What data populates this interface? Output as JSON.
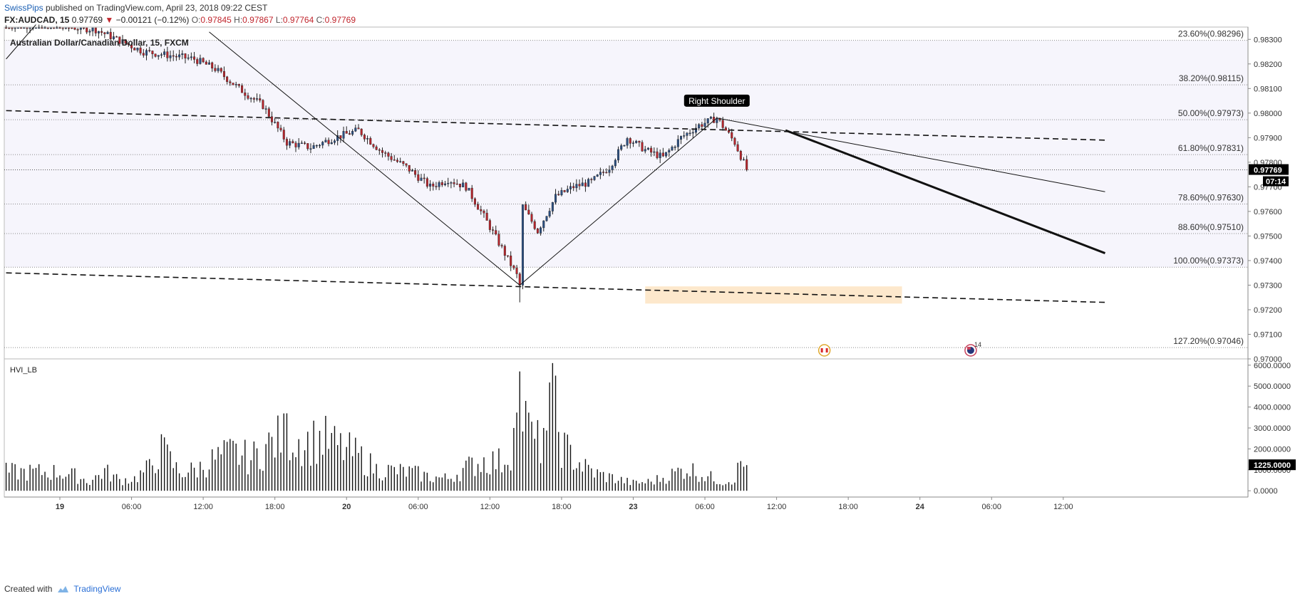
{
  "header": {
    "author": "SwissPips",
    "published": "published on TradingView.com, April 23, 2018 09:22 CEST",
    "symbol": "FX:AUDCAD, 15",
    "price": "0.97769",
    "change": "−0.00121 (−0.12%)",
    "open_label": "O:",
    "open": "0.97845",
    "high_label": "H:",
    "high": "0.97867",
    "low_label": "L:",
    "low": "0.97764",
    "close_label": "C:",
    "close": "0.97769",
    "instrument": "Australian Dollar/Canadian Dollar, 15, FXCM"
  },
  "footer": {
    "created_with": "Created with",
    "brand": "TradingView"
  },
  "chart_data": [
    {
      "type": "candlestick",
      "ylim": [
        0.97,
        0.9835
      ],
      "price_ticks": [
        "0.98300",
        "0.98200",
        "0.98100",
        "0.98000",
        "0.97900",
        "0.97800",
        "0.97700",
        "0.97600",
        "0.97500",
        "0.97400",
        "0.97300",
        "0.97200",
        "0.97100",
        "0.97000"
      ],
      "time_ticks": [
        {
          "label": "19",
          "bar": 0
        },
        {
          "label": "06:00",
          "bar": 24
        },
        {
          "label": "12:00",
          "bar": 48
        },
        {
          "label": "18:00",
          "bar": 72
        },
        {
          "label": "20",
          "bar": 96
        },
        {
          "label": "06:00",
          "bar": 120
        },
        {
          "label": "12:00",
          "bar": 144
        },
        {
          "label": "18:00",
          "bar": 168
        },
        {
          "label": "23",
          "bar": 192
        },
        {
          "label": "06:00",
          "bar": 216
        },
        {
          "label": "12:00",
          "bar": 240
        },
        {
          "label": "18:00",
          "bar": 264
        },
        {
          "label": "24",
          "bar": 288
        },
        {
          "label": "06:00",
          "bar": 312
        },
        {
          "label": "12:00",
          "bar": 336
        }
      ],
      "last_price": "0.97769",
      "countdown": "07:14",
      "fib_levels": [
        {
          "label": "23.60%(0.98296)",
          "value": 0.98296
        },
        {
          "label": "38.20%(0.98115)",
          "value": 0.98115
        },
        {
          "label": "50.00%(0.97973)",
          "value": 0.97973
        },
        {
          "label": "61.80%(0.97831)",
          "value": 0.97831
        },
        {
          "label": "78.60%(0.97630)",
          "value": 0.9763
        },
        {
          "label": "88.60%(0.97510)",
          "value": 0.9751
        },
        {
          "label": "100.00%(0.97373)",
          "value": 0.97373
        },
        {
          "label": "127.20%(0.97046)",
          "value": 0.97046
        }
      ],
      "annotations": [
        {
          "text": "Right Shoulder",
          "bar": 220,
          "value": 0.98
        }
      ],
      "path_points": [
        {
          "bar": -18,
          "value": 0.9836
        },
        {
          "bar": -5,
          "value": 0.9836
        },
        {
          "bar": 12,
          "value": 0.9834
        },
        {
          "bar": 28,
          "value": 0.9825
        },
        {
          "bar": 45,
          "value": 0.9822
        },
        {
          "bar": 52,
          "value": 0.9818
        },
        {
          "bar": 60,
          "value": 0.981
        },
        {
          "bar": 68,
          "value": 0.9803
        },
        {
          "bar": 76,
          "value": 0.9788
        },
        {
          "bar": 84,
          "value": 0.9786
        },
        {
          "bar": 92,
          "value": 0.979
        },
        {
          "bar": 100,
          "value": 0.9793
        },
        {
          "bar": 108,
          "value": 0.9784
        },
        {
          "bar": 116,
          "value": 0.9778
        },
        {
          "bar": 124,
          "value": 0.977
        },
        {
          "bar": 130,
          "value": 0.9773
        },
        {
          "bar": 136,
          "value": 0.977
        },
        {
          "bar": 142,
          "value": 0.9758
        },
        {
          "bar": 148,
          "value": 0.9745
        },
        {
          "bar": 153,
          "value": 0.9734
        },
        {
          "bar": 154,
          "value": 0.973
        },
        {
          "bar": 155,
          "value": 0.9762
        },
        {
          "bar": 160,
          "value": 0.9752
        },
        {
          "bar": 166,
          "value": 0.9766
        },
        {
          "bar": 172,
          "value": 0.977
        },
        {
          "bar": 178,
          "value": 0.9772
        },
        {
          "bar": 184,
          "value": 0.9778
        },
        {
          "bar": 190,
          "value": 0.979
        },
        {
          "bar": 196,
          "value": 0.9785
        },
        {
          "bar": 202,
          "value": 0.9782
        },
        {
          "bar": 208,
          "value": 0.979
        },
        {
          "bar": 214,
          "value": 0.9795
        },
        {
          "bar": 220,
          "value": 0.9798
        },
        {
          "bar": 226,
          "value": 0.9788
        },
        {
          "bar": 230,
          "value": 0.9777
        }
      ],
      "lines": [
        {
          "style": "thin",
          "from": {
            "bar": -18,
            "value": 0.9822
          },
          "to": {
            "bar": -8,
            "value": 0.9836
          }
        },
        {
          "style": "thin",
          "from": {
            "bar": 50,
            "value": 0.9833
          },
          "to": {
            "bar": 154,
            "value": 0.973
          }
        },
        {
          "style": "thin",
          "from": {
            "bar": 154,
            "value": 0.973
          },
          "to": {
            "bar": 220,
            "value": 0.9798
          }
        },
        {
          "style": "thin",
          "from": {
            "bar": 220,
            "value": 0.9798
          },
          "to": {
            "bar": 350,
            "value": 0.9768
          }
        },
        {
          "style": "dashed",
          "from": {
            "bar": -18,
            "value": 0.9801
          },
          "to": {
            "bar": 350,
            "value": 0.9789
          }
        },
        {
          "style": "dashed",
          "from": {
            "bar": -18,
            "value": 0.9735
          },
          "to": {
            "bar": 350,
            "value": 0.9723
          }
        },
        {
          "style": "thick",
          "from": {
            "bar": 243,
            "value": 0.9793
          },
          "to": {
            "bar": 350,
            "value": 0.9743
          }
        }
      ],
      "zone": {
        "from_bar": 196,
        "to_bar": 282,
        "low": 0.97225,
        "high": 0.97295,
        "color": "#fde6c6"
      },
      "events": [
        {
          "bar": 256,
          "type": "flag-ca",
          "count": ""
        },
        {
          "bar": 305,
          "type": "flag-au",
          "count": "14"
        }
      ]
    },
    {
      "type": "bar",
      "name": "HVI_LB",
      "ylim": [
        -300,
        6300
      ],
      "ticks": [
        "6000.0000",
        "5000.0000",
        "4000.0000",
        "3000.0000",
        "2000.0000",
        "1000.0000",
        "0.0000"
      ],
      "last_value": "1225.0000",
      "peaks": [
        {
          "bar": 0,
          "value": 1200
        },
        {
          "bar": 5,
          "value": 1000
        },
        {
          "bar": 10,
          "value": 600
        },
        {
          "bar": 15,
          "value": 1300
        },
        {
          "bar": 20,
          "value": 700
        },
        {
          "bar": 25,
          "value": 800
        },
        {
          "bar": 30,
          "value": 1500
        },
        {
          "bar": 34,
          "value": 2700
        },
        {
          "bar": 40,
          "value": 1200
        },
        {
          "bar": 46,
          "value": 1400
        },
        {
          "bar": 52,
          "value": 2100
        },
        {
          "bar": 58,
          "value": 2500
        },
        {
          "bar": 64,
          "value": 2100
        },
        {
          "bar": 70,
          "value": 3000
        },
        {
          "bar": 76,
          "value": 3700
        },
        {
          "bar": 82,
          "value": 3200
        },
        {
          "bar": 88,
          "value": 3400
        },
        {
          "bar": 94,
          "value": 2800
        },
        {
          "bar": 100,
          "value": 2300
        },
        {
          "bar": 106,
          "value": 1400
        },
        {
          "bar": 112,
          "value": 1300
        },
        {
          "bar": 118,
          "value": 1200
        },
        {
          "bar": 124,
          "value": 900
        },
        {
          "bar": 130,
          "value": 800
        },
        {
          "bar": 136,
          "value": 1500
        },
        {
          "bar": 142,
          "value": 2000
        },
        {
          "bar": 148,
          "value": 1900
        },
        {
          "bar": 152,
          "value": 3000
        },
        {
          "bar": 154,
          "value": 5700
        },
        {
          "bar": 158,
          "value": 3300
        },
        {
          "bar": 162,
          "value": 3000
        },
        {
          "bar": 165,
          "value": 6100
        },
        {
          "bar": 168,
          "value": 3000
        },
        {
          "bar": 172,
          "value": 2200
        },
        {
          "bar": 176,
          "value": 1500
        },
        {
          "bar": 180,
          "value": 1100
        },
        {
          "bar": 186,
          "value": 800
        },
        {
          "bar": 192,
          "value": 500
        },
        {
          "bar": 198,
          "value": 600
        },
        {
          "bar": 204,
          "value": 1000
        },
        {
          "bar": 210,
          "value": 1500
        },
        {
          "bar": 216,
          "value": 1000
        },
        {
          "bar": 222,
          "value": 600
        },
        {
          "bar": 226,
          "value": 800
        },
        {
          "bar": 228,
          "value": 1900
        },
        {
          "bar": 230,
          "value": 1225
        }
      ]
    }
  ]
}
